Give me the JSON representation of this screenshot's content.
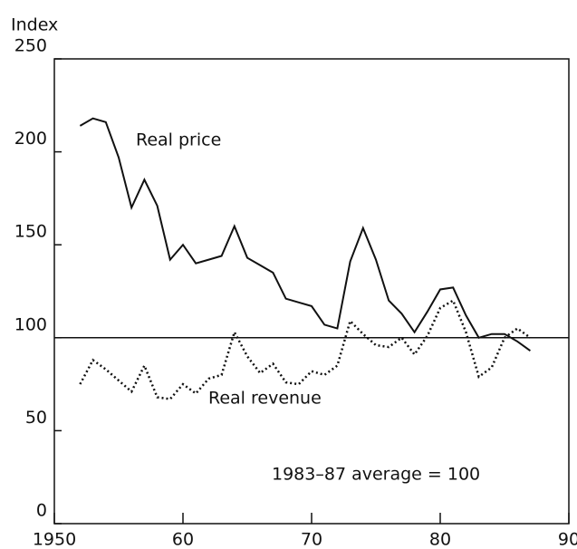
{
  "chart_data": {
    "type": "line",
    "y_axis_label": "Index",
    "annotation": "1983–87 average = 100",
    "reference_line": 100,
    "x": [
      1952,
      1953,
      1954,
      1955,
      1956,
      1957,
      1958,
      1959,
      1960,
      1961,
      1962,
      1963,
      1964,
      1965,
      1966,
      1967,
      1968,
      1969,
      1970,
      1971,
      1972,
      1973,
      1974,
      1975,
      1976,
      1977,
      1978,
      1979,
      1980,
      1981,
      1982,
      1983,
      1984,
      1985,
      1986,
      1987
    ],
    "series": [
      {
        "name": "Real price",
        "color": "#111111",
        "style": "solid",
        "values": [
          214,
          218,
          216,
          197,
          170,
          185,
          171,
          142,
          150,
          140,
          142,
          144,
          160,
          143,
          139,
          135,
          121,
          119,
          117,
          107,
          105,
          141,
          159,
          142,
          120,
          113,
          103,
          114,
          126,
          127,
          112,
          100,
          102,
          102,
          98,
          93
        ]
      },
      {
        "name": "Real revenue",
        "color": "#111111",
        "style": "dotted",
        "values": [
          75,
          88,
          83,
          77,
          71,
          85,
          68,
          67,
          75,
          70,
          78,
          80,
          103,
          90,
          81,
          86,
          76,
          75,
          82,
          80,
          85,
          109,
          102,
          96,
          95,
          100,
          91,
          101,
          116,
          120,
          103,
          79,
          84,
          100,
          105,
          100
        ]
      }
    ],
    "xlim": [
      1950,
      1990
    ],
    "xticks": [
      1950,
      {
        "value": 1960,
        "label": "60"
      },
      {
        "value": 1970,
        "label": "70"
      },
      {
        "value": 1980,
        "label": "80"
      },
      {
        "value": 1990,
        "label": "90"
      }
    ],
    "ylim": [
      0,
      250
    ],
    "yticks": [
      0,
      50,
      100,
      150,
      200,
      250
    ],
    "grid": false
  }
}
